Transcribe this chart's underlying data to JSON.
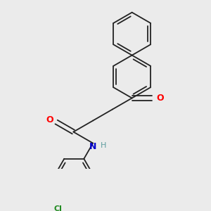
{
  "bg_color": "#ebebeb",
  "bond_color": "#222222",
  "bond_width": 1.3,
  "atom_colors": {
    "O": "#ff0000",
    "N": "#0000cd",
    "Cl": "#228b22",
    "H": "#5f9ea0"
  },
  "figsize": [
    3.0,
    3.0
  ],
  "dpi": 100
}
